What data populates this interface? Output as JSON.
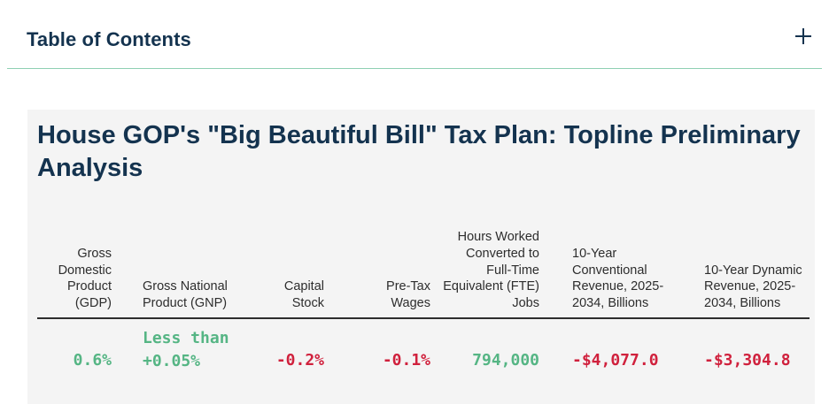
{
  "toc": {
    "title": "Table of Contents",
    "toggle_icon": "plus-icon"
  },
  "report": {
    "title": "House GOP's \"Big Beautiful Bill\" Tax Plan: Topline Preliminary Analysis",
    "columns": [
      {
        "header": "Gross Domestic Product (GDP)",
        "value": "0.6%",
        "tone": "positive"
      },
      {
        "header": "Gross National Product (GNP)",
        "value": "Less than +0.05%",
        "tone": "positive"
      },
      {
        "header": "Capital Stock",
        "value": "-0.2%",
        "tone": "negative"
      },
      {
        "header": "Pre-Tax Wages",
        "value": "-0.1%",
        "tone": "negative"
      },
      {
        "header": "Hours Worked Converted to Full-Time Equivalent (FTE) Jobs",
        "value": "794,000",
        "tone": "positive"
      },
      {
        "header": "10-Year Conventional Revenue, 2025-2034, Billions",
        "value": "-$4,077.0",
        "tone": "negative"
      },
      {
        "header": "10-Year Dynamic Revenue, 2025-2034, Billions",
        "value": "-$3,304.8",
        "tone": "negative"
      }
    ]
  },
  "colors": {
    "heading": "#14334f",
    "positive": "#55b584",
    "negative": "#d0213d",
    "divider": "#8fd0b3",
    "card_bg": "#f4f4f4"
  }
}
